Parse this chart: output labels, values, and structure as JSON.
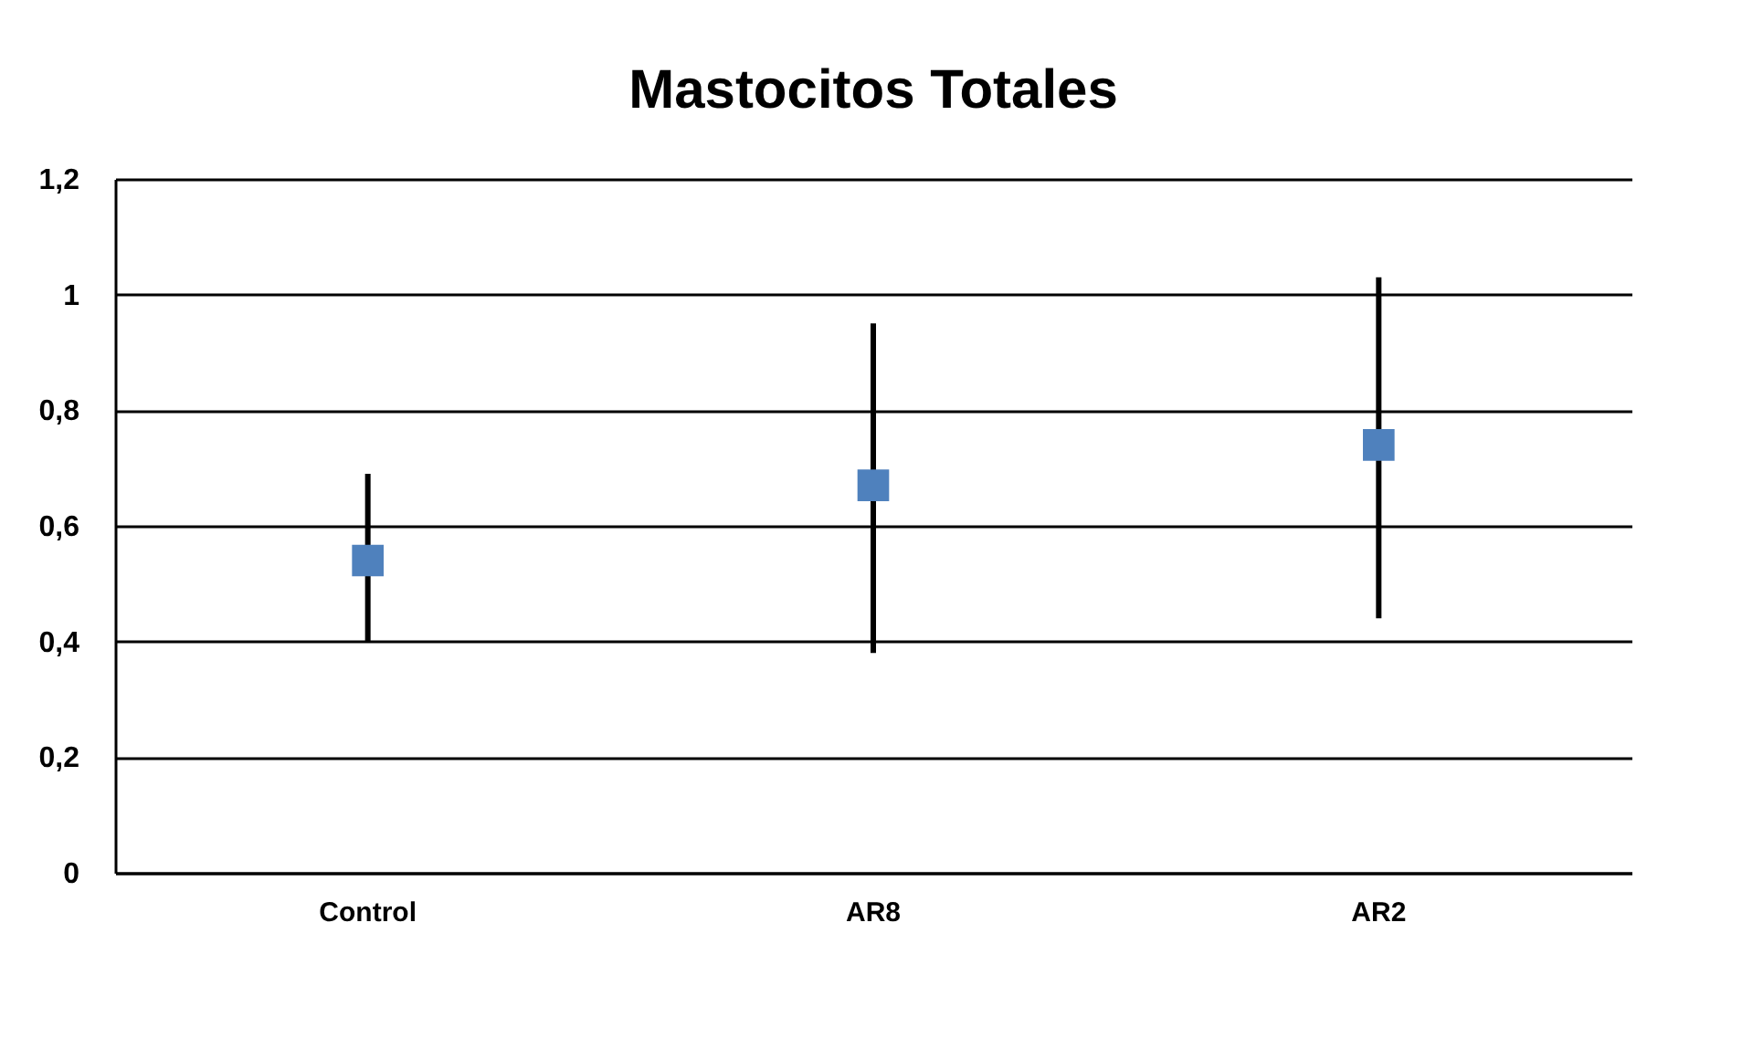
{
  "chart_data": {
    "type": "scatter",
    "title": "Mastocitos Totales",
    "categories": [
      "Control",
      "AR8",
      "AR2"
    ],
    "series": [
      {
        "color": "#4f81bd",
        "values": [
          0.54,
          0.67,
          0.74
        ],
        "errors": [
          [
            0.4,
            0.69
          ],
          [
            0.38,
            0.95
          ],
          [
            0.44,
            1.03
          ]
        ]
      }
    ],
    "ylim": [
      0,
      1.2
    ],
    "yticks": [
      0,
      {
        "value": 0.2,
        "label": "0,2"
      },
      {
        "value": 0.4,
        "label": "0,4"
      },
      {
        "value": 0.6,
        "label": "0,6"
      },
      {
        "value": 0.8,
        "label": "0,8"
      },
      1,
      {
        "value": 1.2,
        "label": "1,2"
      }
    ],
    "grid": "y",
    "marker": "square"
  }
}
